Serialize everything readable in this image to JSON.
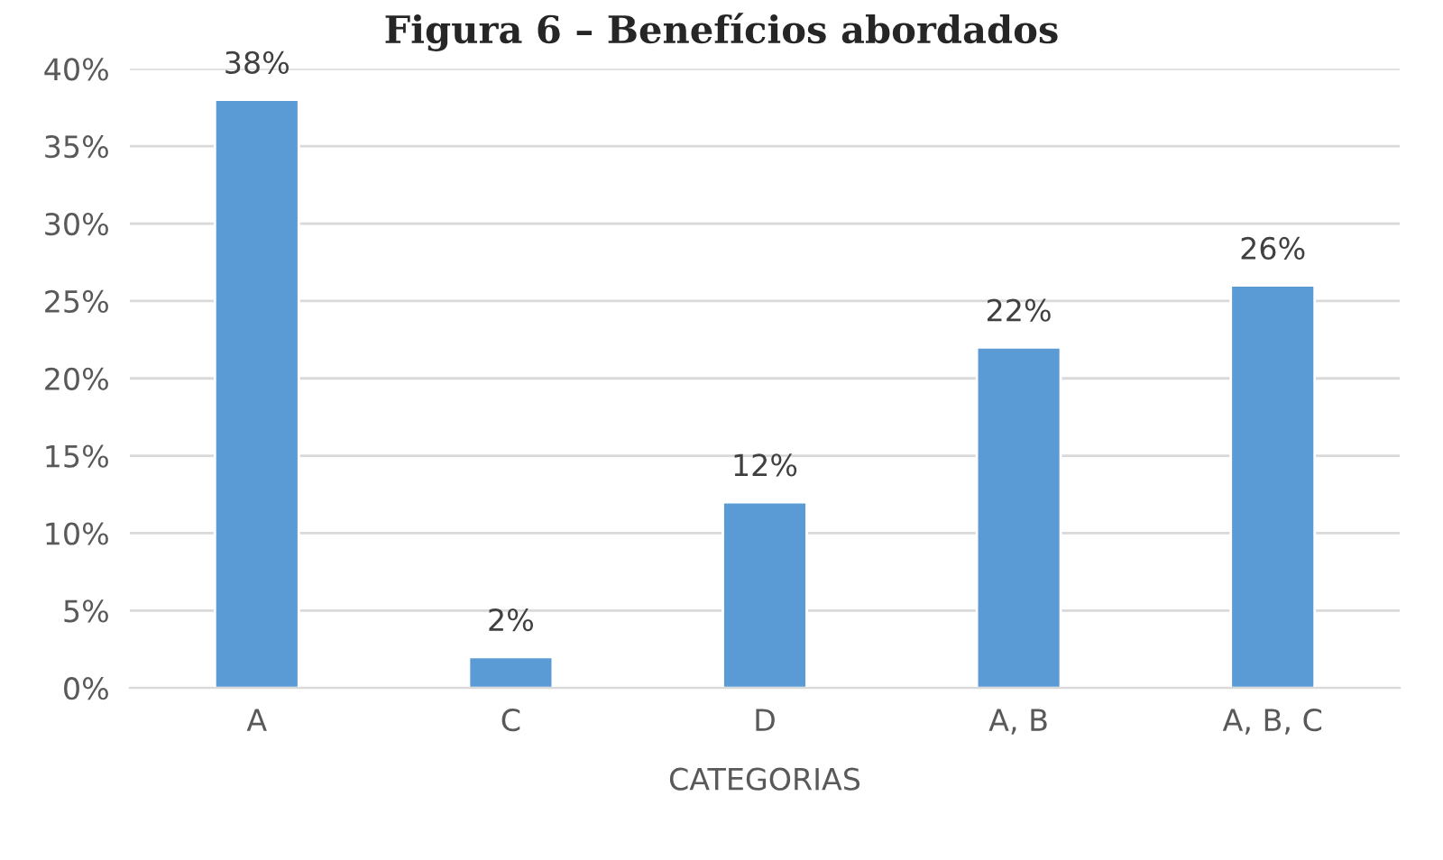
{
  "chart_data": {
    "type": "bar",
    "title": "Figura 6 – Benefícios abordados",
    "xlabel": "CATEGORIAS",
    "categories": [
      "A",
      "C",
      "D",
      "A, B",
      "A, B, C"
    ],
    "values": [
      38,
      2,
      12,
      22,
      26
    ],
    "value_labels": [
      "38%",
      "2%",
      "12%",
      "22%",
      "26%"
    ],
    "color": "#5b9bd5",
    "ylim": [
      0,
      40
    ],
    "yticks": [
      {
        "value": 0,
        "label": "0%"
      },
      {
        "value": 5,
        "label": "5%"
      },
      {
        "value": 10,
        "label": "10%"
      },
      {
        "value": 15,
        "label": "15%"
      },
      {
        "value": 20,
        "label": "20%"
      },
      {
        "value": 25,
        "label": "25%"
      },
      {
        "value": 30,
        "label": "30%"
      },
      {
        "value": 35,
        "label": "35%"
      },
      {
        "value": 40,
        "label": "40%"
      }
    ],
    "grid": "y"
  }
}
